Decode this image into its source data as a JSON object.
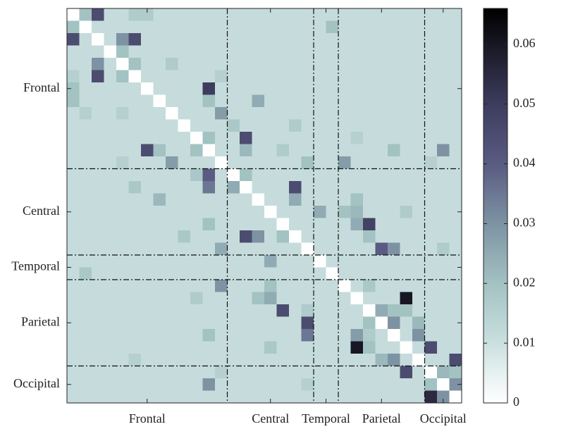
{
  "chart_data": {
    "type": "heatmap",
    "groups": [
      {
        "name": "Frontal",
        "size": 13
      },
      {
        "name": "Central",
        "size": 7
      },
      {
        "name": "Temporal",
        "size": 2
      },
      {
        "name": "Parietal",
        "size": 7
      },
      {
        "name": "Occipital",
        "size": 3
      }
    ],
    "clim": [
      0,
      0.066
    ],
    "colorbar_ticks": [
      0,
      0.01,
      0.02,
      0.03,
      0.04,
      0.05,
      0.06
    ],
    "z": [
      [
        0,
        0.02,
        0.045,
        0.011,
        0.011,
        0.017,
        0.017,
        0.011,
        0.011,
        0.011,
        0.011,
        0.011,
        0.011,
        0.011,
        0.011,
        0.011,
        0.011,
        0.011,
        0.011,
        0.011,
        0.011,
        0.011,
        0.011,
        0.011,
        0.011,
        0.011,
        0.011,
        0.011,
        0.011,
        0.011,
        0.011,
        0.011
      ],
      [
        0.02,
        0,
        0.011,
        0.011,
        0.011,
        0.011,
        0.011,
        0.011,
        0.011,
        0.011,
        0.011,
        0.011,
        0.011,
        0.011,
        0.011,
        0.011,
        0.011,
        0.011,
        0.011,
        0.011,
        0.011,
        0.02,
        0.011,
        0.011,
        0.011,
        0.011,
        0.011,
        0.011,
        0.011,
        0.011,
        0.011,
        0.011
      ],
      [
        0.045,
        0.011,
        0,
        0.011,
        0.03,
        0.045,
        0.011,
        0.011,
        0.011,
        0.011,
        0.011,
        0.011,
        0.011,
        0.011,
        0.011,
        0.011,
        0.011,
        0.011,
        0.011,
        0.011,
        0.011,
        0.011,
        0.011,
        0.011,
        0.011,
        0.011,
        0.011,
        0.011,
        0.011,
        0.011,
        0.011,
        0.011
      ],
      [
        0.011,
        0.011,
        0.011,
        0,
        0.02,
        0.011,
        0.011,
        0.011,
        0.011,
        0.011,
        0.011,
        0.011,
        0.011,
        0.011,
        0.011,
        0.011,
        0.011,
        0.011,
        0.011,
        0.011,
        0.011,
        0.011,
        0.011,
        0.011,
        0.011,
        0.011,
        0.011,
        0.011,
        0.011,
        0.011,
        0.011,
        0.011
      ],
      [
        0.011,
        0.011,
        0.03,
        0.011,
        0,
        0.02,
        0.011,
        0.011,
        0.017,
        0.011,
        0.011,
        0.011,
        0.011,
        0.011,
        0.011,
        0.011,
        0.011,
        0.011,
        0.011,
        0.011,
        0.011,
        0.011,
        0.011,
        0.011,
        0.011,
        0.011,
        0.011,
        0.011,
        0.011,
        0.011,
        0.011,
        0.011
      ],
      [
        0.015,
        0.011,
        0.045,
        0.011,
        0.02,
        0,
        0.011,
        0.011,
        0.011,
        0.011,
        0.011,
        0.011,
        0.015,
        0.011,
        0.011,
        0.011,
        0.011,
        0.011,
        0.011,
        0.011,
        0.011,
        0.011,
        0.011,
        0.011,
        0.011,
        0.011,
        0.011,
        0.011,
        0.011,
        0.011,
        0.011,
        0.011
      ],
      [
        0.02,
        0.011,
        0.011,
        0.011,
        0.011,
        0.011,
        0,
        0.011,
        0.011,
        0.011,
        0.011,
        0.05,
        0.011,
        0.011,
        0.011,
        0.011,
        0.011,
        0.011,
        0.011,
        0.011,
        0.011,
        0.011,
        0.011,
        0.011,
        0.011,
        0.011,
        0.011,
        0.011,
        0.011,
        0.011,
        0.011,
        0.011
      ],
      [
        0.02,
        0.011,
        0.011,
        0.011,
        0.011,
        0.011,
        0.011,
        0,
        0.011,
        0.011,
        0.011,
        0.02,
        0.011,
        0.011,
        0.011,
        0.025,
        0.011,
        0.011,
        0.011,
        0.011,
        0.011,
        0.011,
        0.011,
        0.011,
        0.011,
        0.011,
        0.011,
        0.011,
        0.011,
        0.011,
        0.011,
        0.011
      ],
      [
        0.011,
        0.015,
        0.011,
        0.011,
        0.015,
        0.011,
        0.011,
        0.011,
        0,
        0.011,
        0.011,
        0.011,
        0.028,
        0.011,
        0.011,
        0.011,
        0.011,
        0.011,
        0.011,
        0.011,
        0.011,
        0.011,
        0.011,
        0.011,
        0.011,
        0.011,
        0.011,
        0.011,
        0.011,
        0.011,
        0.011,
        0.011
      ],
      [
        0.011,
        0.011,
        0.011,
        0.011,
        0.011,
        0.011,
        0.011,
        0.011,
        0.011,
        0,
        0.011,
        0.011,
        0.011,
        0.018,
        0.011,
        0.011,
        0.011,
        0.011,
        0.017,
        0.011,
        0.011,
        0.011,
        0.011,
        0.011,
        0.011,
        0.011,
        0.011,
        0.011,
        0.011,
        0.011,
        0.011,
        0.011
      ],
      [
        0.011,
        0.011,
        0.011,
        0.011,
        0.011,
        0.011,
        0.011,
        0.011,
        0.011,
        0.011,
        0,
        0.02,
        0.011,
        0.011,
        0.045,
        0.011,
        0.011,
        0.011,
        0.011,
        0.011,
        0.011,
        0.011,
        0.011,
        0.015,
        0.011,
        0.011,
        0.011,
        0.011,
        0.011,
        0.011,
        0.011,
        0.011
      ],
      [
        0.011,
        0.011,
        0.011,
        0.011,
        0.011,
        0.011,
        0.045,
        0.02,
        0.011,
        0.011,
        0.02,
        0,
        0.011,
        0.011,
        0.022,
        0.011,
        0.011,
        0.017,
        0.011,
        0.011,
        0.011,
        0.011,
        0.011,
        0.011,
        0.011,
        0.011,
        0.02,
        0.011,
        0.011,
        0.011,
        0.03,
        0.011
      ],
      [
        0.011,
        0.011,
        0.011,
        0.011,
        0.015,
        0.011,
        0.011,
        0.011,
        0.028,
        0.011,
        0.011,
        0.011,
        0,
        0.011,
        0.011,
        0.011,
        0.011,
        0.011,
        0.011,
        0.02,
        0.011,
        0.011,
        0.028,
        0.011,
        0.011,
        0.011,
        0.011,
        0.011,
        0.011,
        0.015,
        0.011,
        0.011
      ],
      [
        0.011,
        0.011,
        0.011,
        0.011,
        0.011,
        0.011,
        0.011,
        0.011,
        0.011,
        0.011,
        0.018,
        0.04,
        0.011,
        0,
        0.02,
        0.011,
        0.011,
        0.011,
        0.011,
        0.011,
        0.011,
        0.011,
        0.011,
        0.011,
        0.011,
        0.011,
        0.011,
        0.011,
        0.011,
        0.011,
        0.011,
        0.011
      ],
      [
        0.011,
        0.011,
        0.011,
        0.011,
        0.011,
        0.018,
        0.011,
        0.011,
        0.011,
        0.011,
        0.011,
        0.035,
        0.011,
        0.025,
        0,
        0.011,
        0.011,
        0.011,
        0.045,
        0.011,
        0.011,
        0.011,
        0.011,
        0.011,
        0.011,
        0.011,
        0.011,
        0.011,
        0.011,
        0.011,
        0.011,
        0.011
      ],
      [
        0.011,
        0.011,
        0.011,
        0.011,
        0.011,
        0.011,
        0.011,
        0.022,
        0.011,
        0.011,
        0.011,
        0.011,
        0.011,
        0.011,
        0.011,
        0,
        0.011,
        0.011,
        0.025,
        0.011,
        0.011,
        0.011,
        0.011,
        0.02,
        0.011,
        0.011,
        0.011,
        0.011,
        0.011,
        0.011,
        0.011,
        0.011
      ],
      [
        0.011,
        0.011,
        0.011,
        0.011,
        0.011,
        0.011,
        0.011,
        0.011,
        0.011,
        0.011,
        0.011,
        0.011,
        0.011,
        0.011,
        0.011,
        0.011,
        0,
        0.011,
        0.011,
        0.011,
        0.025,
        0.011,
        0.02,
        0.022,
        0.011,
        0.011,
        0.011,
        0.017,
        0.011,
        0.011,
        0.011,
        0.011
      ],
      [
        0.011,
        0.011,
        0.011,
        0.011,
        0.011,
        0.011,
        0.011,
        0.011,
        0.011,
        0.011,
        0.011,
        0.02,
        0.011,
        0.011,
        0.011,
        0.011,
        0.011,
        0,
        0.011,
        0.011,
        0.011,
        0.011,
        0.011,
        0.025,
        0.048,
        0.011,
        0.011,
        0.011,
        0.011,
        0.011,
        0.011,
        0.011
      ],
      [
        0.011,
        0.011,
        0.011,
        0.011,
        0.011,
        0.011,
        0.011,
        0.011,
        0.011,
        0.018,
        0.011,
        0.011,
        0.011,
        0.011,
        0.045,
        0.03,
        0.011,
        0.02,
        0,
        0.011,
        0.011,
        0.011,
        0.011,
        0.011,
        0.02,
        0.011,
        0.011,
        0.011,
        0.011,
        0.011,
        0.011,
        0.011
      ],
      [
        0.011,
        0.011,
        0.011,
        0.011,
        0.011,
        0.011,
        0.011,
        0.011,
        0.011,
        0.011,
        0.011,
        0.011,
        0.025,
        0.011,
        0.011,
        0.011,
        0.011,
        0.011,
        0.011,
        0,
        0.011,
        0.011,
        0.011,
        0.011,
        0.011,
        0.04,
        0.03,
        0.011,
        0.011,
        0.011,
        0.017,
        0.011
      ],
      [
        0.011,
        0.011,
        0.011,
        0.011,
        0.011,
        0.011,
        0.011,
        0.011,
        0.011,
        0.011,
        0.011,
        0.011,
        0.011,
        0.011,
        0.011,
        0.011,
        0.025,
        0.011,
        0.011,
        0.011,
        0,
        0.011,
        0.011,
        0.011,
        0.011,
        0.011,
        0.011,
        0.011,
        0.011,
        0.011,
        0.011,
        0.011
      ],
      [
        0.011,
        0.018,
        0.011,
        0.011,
        0.011,
        0.011,
        0.011,
        0.011,
        0.011,
        0.011,
        0.011,
        0.011,
        0.011,
        0.011,
        0.011,
        0.011,
        0.011,
        0.011,
        0.011,
        0.011,
        0.011,
        0,
        0.011,
        0.011,
        0.011,
        0.011,
        0.011,
        0.011,
        0.011,
        0.011,
        0.011,
        0.011
      ],
      [
        0.011,
        0.011,
        0.011,
        0.011,
        0.011,
        0.011,
        0.011,
        0.011,
        0.011,
        0.011,
        0.011,
        0.011,
        0.03,
        0.011,
        0.011,
        0.011,
        0.02,
        0.011,
        0.011,
        0.011,
        0.011,
        0.011,
        0,
        0.011,
        0.018,
        0.011,
        0.011,
        0.011,
        0.011,
        0.011,
        0.011,
        0.011
      ],
      [
        0.011,
        0.011,
        0.011,
        0.011,
        0.011,
        0.011,
        0.011,
        0.011,
        0.011,
        0.011,
        0.017,
        0.011,
        0.011,
        0.011,
        0.011,
        0.02,
        0.025,
        0.011,
        0.011,
        0.011,
        0.011,
        0.011,
        0.011,
        0,
        0.011,
        0.011,
        0.011,
        0.06,
        0.011,
        0.011,
        0.011,
        0.011
      ],
      [
        0.011,
        0.011,
        0.011,
        0.011,
        0.011,
        0.011,
        0.011,
        0.011,
        0.011,
        0.011,
        0.011,
        0.011,
        0.011,
        0.011,
        0.011,
        0.011,
        0.011,
        0.045,
        0.011,
        0.017,
        0.011,
        0.011,
        0.011,
        0.011,
        0,
        0.025,
        0.02,
        0.02,
        0.011,
        0.011,
        0.011,
        0.011
      ],
      [
        0.011,
        0.011,
        0.011,
        0.011,
        0.011,
        0.011,
        0.011,
        0.011,
        0.011,
        0.011,
        0.011,
        0.011,
        0.011,
        0.011,
        0.011,
        0.011,
        0.011,
        0.011,
        0.011,
        0.045,
        0.011,
        0.011,
        0.011,
        0.011,
        0.02,
        0,
        0.03,
        0.011,
        0.022,
        0.011,
        0.011,
        0.011
      ],
      [
        0.011,
        0.011,
        0.011,
        0.011,
        0.011,
        0.011,
        0.011,
        0.011,
        0.011,
        0.011,
        0.011,
        0.02,
        0.011,
        0.011,
        0.011,
        0.011,
        0.011,
        0.011,
        0.011,
        0.035,
        0.011,
        0.011,
        0.011,
        0.028,
        0.017,
        0.011,
        0,
        0.011,
        0.03,
        0.011,
        0.011,
        0.011
      ],
      [
        0.011,
        0.011,
        0.011,
        0.011,
        0.011,
        0.011,
        0.011,
        0.011,
        0.011,
        0.011,
        0.011,
        0.011,
        0.011,
        0.011,
        0.011,
        0.011,
        0.018,
        0.011,
        0.011,
        0.011,
        0.011,
        0.011,
        0.011,
        0.06,
        0.02,
        0.011,
        0.011,
        0,
        0.011,
        0.045,
        0.011,
        0.011
      ],
      [
        0.011,
        0.011,
        0.011,
        0.011,
        0.011,
        0.015,
        0.011,
        0.011,
        0.011,
        0.011,
        0.011,
        0.011,
        0.011,
        0.011,
        0.011,
        0.011,
        0.011,
        0.011,
        0.011,
        0.011,
        0.011,
        0.011,
        0.011,
        0.011,
        0.011,
        0.022,
        0.03,
        0.011,
        0,
        0.011,
        0.011,
        0.045
      ],
      [
        0.011,
        0.011,
        0.011,
        0.011,
        0.011,
        0.011,
        0.011,
        0.011,
        0.011,
        0.011,
        0.011,
        0.011,
        0.015,
        0.011,
        0.011,
        0.011,
        0.011,
        0.011,
        0.011,
        0.011,
        0.011,
        0.011,
        0.011,
        0.011,
        0.011,
        0.011,
        0.011,
        0.045,
        0.011,
        0,
        0.022,
        0.02
      ],
      [
        0.011,
        0.011,
        0.011,
        0.011,
        0.011,
        0.011,
        0.011,
        0.011,
        0.011,
        0.011,
        0.011,
        0.03,
        0.011,
        0.011,
        0.011,
        0.011,
        0.011,
        0.011,
        0.011,
        0.015,
        0.011,
        0.011,
        0.011,
        0.011,
        0.011,
        0.011,
        0.011,
        0.011,
        0.011,
        0.02,
        0,
        0.03
      ],
      [
        0.011,
        0.011,
        0.011,
        0.011,
        0.011,
        0.011,
        0.011,
        0.011,
        0.011,
        0.011,
        0.011,
        0.011,
        0.011,
        0.011,
        0.011,
        0.011,
        0.011,
        0.011,
        0.011,
        0.011,
        0.011,
        0.011,
        0.011,
        0.011,
        0.011,
        0.011,
        0.011,
        0.011,
        0.011,
        0.055,
        0.03,
        0
      ]
    ]
  }
}
